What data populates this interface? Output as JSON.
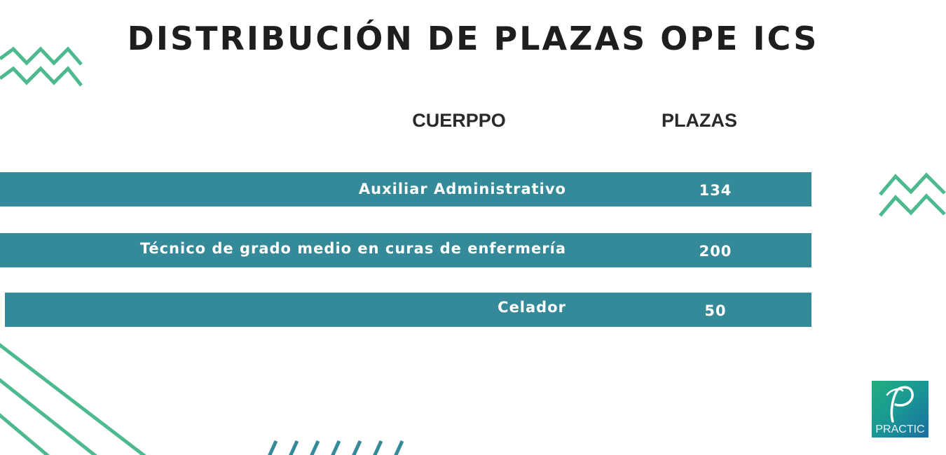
{
  "title": "DISTRIBUCIÓN DE PLAZAS OPE ICS",
  "table": {
    "headers": {
      "cuerpo": "CUERPPO",
      "plazas": "PLAZAS"
    },
    "rows": [
      {
        "cuerpo": "Auxiliar Administrativo",
        "plazas": "134"
      },
      {
        "cuerpo": "Técnico de grado medio en curas de enfermería",
        "plazas": "200"
      },
      {
        "cuerpo": "Celador",
        "plazas": "50"
      }
    ]
  },
  "logo": {
    "text": "PRACTIC"
  },
  "colors": {
    "row_background": "#348a98",
    "accent_green": "#4cb98e",
    "title_text": "#1e1e1e"
  }
}
